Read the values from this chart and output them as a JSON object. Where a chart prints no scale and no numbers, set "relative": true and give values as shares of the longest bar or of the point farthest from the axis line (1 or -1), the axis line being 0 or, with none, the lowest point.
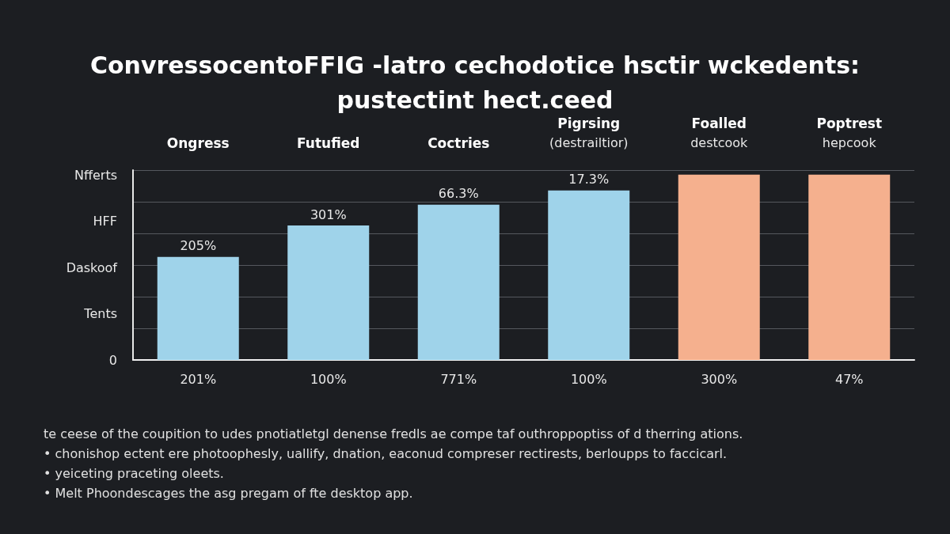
{
  "chart_data": {
    "type": "bar",
    "title": "ConvressocentoFFIG -latro cechodotice hsctir wckedents:",
    "subtitle": "pustectint hect.ceed",
    "relative": true,
    "categories": [
      "Ongress",
      "Futufied",
      "Coctries",
      "Pigrsing\n(destrailtior)",
      "Foalled\ndestcook",
      "Poptrest\nhepcook"
    ],
    "values": [
      0.556,
      0.726,
      0.838,
      0.915,
      1,
      1
    ],
    "colors": [
      "#9fd3ea",
      "#9fd3ea",
      "#9fd3ea",
      "#9fd3ea",
      "#f5b08e",
      "#f5b08e"
    ],
    "grid": "y",
    "annotations": [
      {
        "text": "205%",
        "x": "Ongress",
        "y": 0.556
      },
      {
        "text": "301%",
        "x": "Futufied",
        "y": 0.726
      },
      {
        "text": "66.3%",
        "x": "Coctries",
        "y": 0.838
      },
      {
        "text": "17.3%",
        "x": "Pigrsing\n(destrailtior)",
        "y": 0.915
      },
      {
        "text": "201%",
        "x": "Ongress",
        "y": 0
      },
      {
        "text": "100%",
        "x": "Futufied",
        "y": 0
      },
      {
        "text": "771%",
        "x": "Coctries",
        "y": 0
      },
      {
        "text": "100%",
        "x": "Pigrsing\n(destrailtior)",
        "y": 0
      },
      {
        "text": "300%",
        "x": "Foalled\ndestcook",
        "y": 0
      },
      {
        "text": "47%",
        "x": "Poptrest\nhepcook",
        "y": 0
      },
      "Nfferts",
      "HFF",
      "Daskoof",
      "Tents",
      "0",
      "te ceese of the coupition to udes pnotiatletgl denense fredls ae compe taf outhroppoptiss of d therring ations.",
      "• chonishop ectent ere photoophesly, uallify, dnation, eaconud compreser rectirests, berloupps to faccicarl.",
      "• yeiceting praceting oleets.",
      "• Melt Phoondescages the asg pregam of fte desktop app."
    ]
  }
}
